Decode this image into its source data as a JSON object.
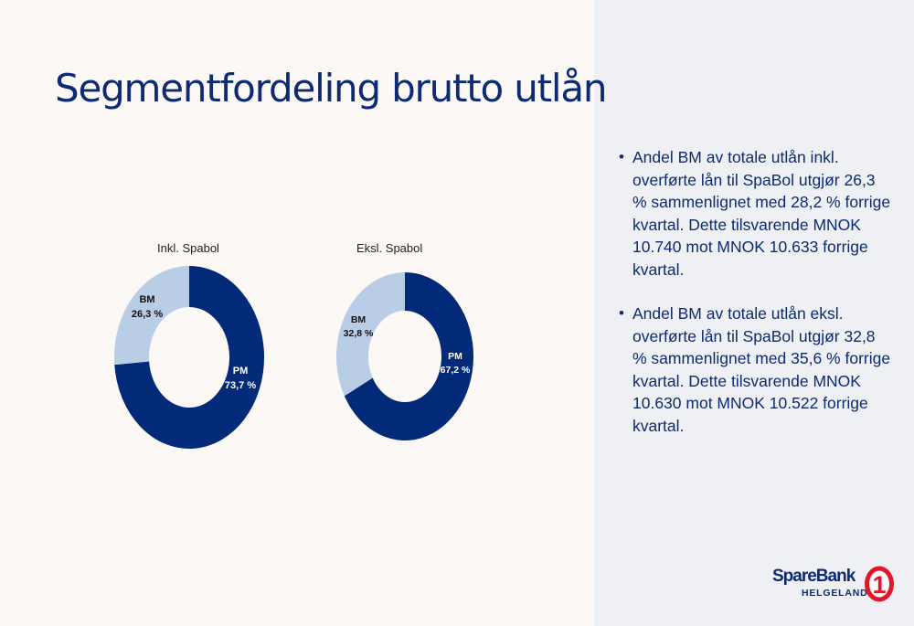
{
  "title": "Segmentfordeling brutto utlån",
  "colors": {
    "pm": "#022a78",
    "bm": "#b9cde7",
    "brand_red": "#e4152a"
  },
  "chart_data": [
    {
      "type": "pie",
      "title": "Inkl. Spabol",
      "slices": [
        {
          "name": "PM",
          "value": 73.7,
          "label": "73,7 %"
        },
        {
          "name": "BM",
          "value": 26.3,
          "label": "26,3 %"
        }
      ]
    },
    {
      "type": "pie",
      "title": "Eksl. Spabol",
      "slices": [
        {
          "name": "PM",
          "value": 67.2,
          "label": "67,2 %"
        },
        {
          "name": "BM",
          "value": 32.8,
          "label": "32,8 %"
        }
      ]
    }
  ],
  "bullets": [
    "Andel BM av totale utlån inkl. overførte lån til SpaBol utgjør 26,3 % sammenlignet med 28,2 % forrige kvartal. Dette tilsvarende MNOK 10.740 mot MNOK 10.633 forrige kvartal.",
    "Andel BM av totale utlån eksl. overførte lån til SpaBol utgjør 32,8 % sammenlignet med 35,6 % forrige kvartal. Dette tilsvarende MNOK 10.630 mot MNOK 10.522 forrige kvartal."
  ],
  "logo": {
    "name": "SpareBank",
    "mark": "1",
    "sub": "HELGELAND"
  }
}
